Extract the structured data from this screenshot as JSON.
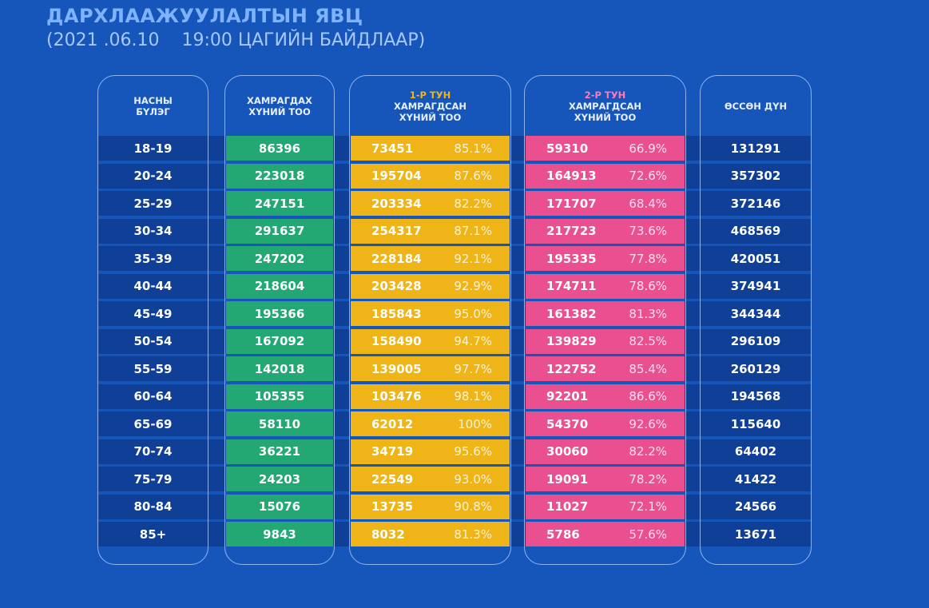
{
  "header": {
    "title": "ДАРХЛААЖУУЛАЛТЫН ЯВЦ",
    "subtitle": "(2021 .06.10    19:00 ЦАГИЙН БАЙДЛААР)"
  },
  "columns": {
    "age": {
      "line1": "НАСНЫ",
      "line2": "БҮЛЭГ"
    },
    "target": {
      "line1": "ХАМРАГДАХ",
      "line2": "ХҮНИЙ ТОО"
    },
    "dose1": {
      "dose": "1-Р ТУН",
      "line1": "ХАМРАГДСАН",
      "line2": "ХҮНИЙ ТОО"
    },
    "dose2": {
      "dose": "2-Р ТУН",
      "line1": "ХАМРАГДСАН",
      "line2": "ХҮНИЙ ТОО"
    },
    "total": {
      "line1": "ӨССӨН ДҮН"
    }
  },
  "colors": {
    "dose1": "#efb417",
    "dose2": "#ea4f8f",
    "target": "#23a873"
  },
  "rows": [
    {
      "age": "18-19",
      "target": "86396",
      "d1": "73451",
      "d1p": "85.1%",
      "d2": "59310",
      "d2p": "66.9%",
      "total": "131291"
    },
    {
      "age": "20-24",
      "target": "223018",
      "d1": "195704",
      "d1p": "87.6%",
      "d2": "164913",
      "d2p": "72.6%",
      "total": "357302"
    },
    {
      "age": "25-29",
      "target": "247151",
      "d1": "203334",
      "d1p": "82.2%",
      "d2": "171707",
      "d2p": "68.4%",
      "total": "372146"
    },
    {
      "age": "30-34",
      "target": "291637",
      "d1": "254317",
      "d1p": "87.1%",
      "d2": "217723",
      "d2p": "73.6%",
      "total": "468569"
    },
    {
      "age": "35-39",
      "target": "247202",
      "d1": "228184",
      "d1p": "92.1%",
      "d2": "195335",
      "d2p": "77.8%",
      "total": "420051"
    },
    {
      "age": "40-44",
      "target": "218604",
      "d1": "203428",
      "d1p": "92.9%",
      "d2": "174711",
      "d2p": "78.6%",
      "total": "374941"
    },
    {
      "age": "45-49",
      "target": "195366",
      "d1": "185843",
      "d1p": "95.0%",
      "d2": "161382",
      "d2p": "81.3%",
      "total": "344344"
    },
    {
      "age": "50-54",
      "target": "167092",
      "d1": "158490",
      "d1p": "94.7%",
      "d2": "139829",
      "d2p": "82.5%",
      "total": "296109"
    },
    {
      "age": "55-59",
      "target": "142018",
      "d1": "139005",
      "d1p": "97.7%",
      "d2": "122752",
      "d2p": "85.4%",
      "total": "260129"
    },
    {
      "age": "60-64",
      "target": "105355",
      "d1": "103476",
      "d1p": "98.1%",
      "d2": "92201",
      "d2p": "86.6%",
      "total": "194568"
    },
    {
      "age": "65-69",
      "target": "58110",
      "d1": "62012",
      "d1p": "100%",
      "d2": "54370",
      "d2p": "92.6%",
      "total": "115640"
    },
    {
      "age": "70-74",
      "target": "36221",
      "d1": "34719",
      "d1p": "95.6%",
      "d2": "30060",
      "d2p": "82.2%",
      "total": "64402"
    },
    {
      "age": "75-79",
      "target": "24203",
      "d1": "22549",
      "d1p": "93.0%",
      "d2": "19091",
      "d2p": "78.2%",
      "total": "41422"
    },
    {
      "age": "80-84",
      "target": "15076",
      "d1": "13735",
      "d1p": "90.8%",
      "d2": "11027",
      "d2p": "72.1%",
      "total": "24566"
    },
    {
      "age": "85+",
      "target": "9843",
      "d1": "8032",
      "d1p": "81.3%",
      "d2": "5786",
      "d2p": "57.6%",
      "total": "13671"
    }
  ]
}
